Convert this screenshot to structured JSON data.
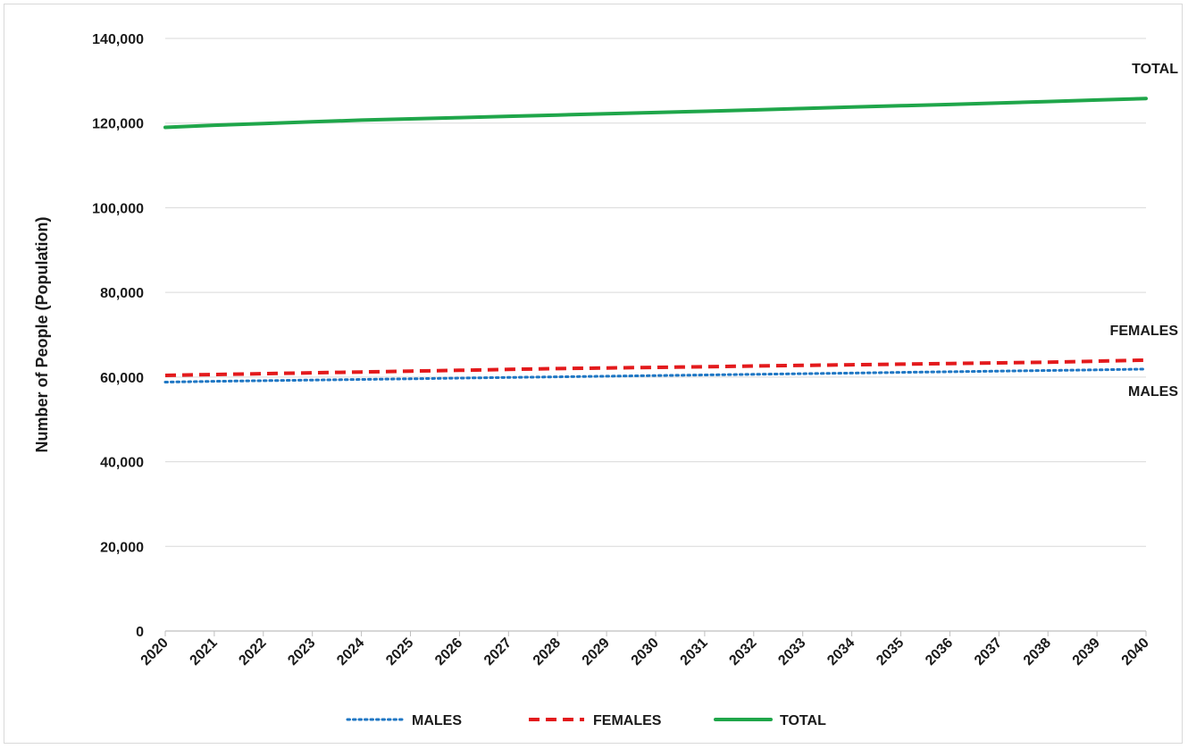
{
  "chart_data": {
    "type": "line",
    "title": "",
    "xlabel": "",
    "ylabel": "Number of People (Population)",
    "x": [
      2020,
      2021,
      2022,
      2023,
      2024,
      2025,
      2026,
      2027,
      2028,
      2029,
      2030,
      2031,
      2032,
      2033,
      2034,
      2035,
      2036,
      2037,
      2038,
      2039,
      2040
    ],
    "ylim": [
      0,
      140000
    ],
    "yticks": [
      0,
      20000,
      40000,
      60000,
      80000,
      100000,
      120000,
      140000
    ],
    "ytick_labels": [
      "0",
      "20,000",
      "40,000",
      "60,000",
      "80,000",
      "100,000",
      "120,000",
      "140,000"
    ],
    "grid": "horizontal",
    "legend_position": "bottom",
    "series": [
      {
        "name": "MALES",
        "color": "#1f77c4",
        "style": "dotted",
        "values": [
          58800,
          59000,
          59150,
          59300,
          59450,
          59600,
          59750,
          59900,
          60050,
          60200,
          60350,
          60500,
          60650,
          60800,
          60950,
          61100,
          61250,
          61400,
          61550,
          61700,
          61900
        ]
      },
      {
        "name": "FEMALES",
        "color": "#e31a1c",
        "style": "dashed",
        "values": [
          60400,
          60600,
          60800,
          61000,
          61200,
          61400,
          61600,
          61800,
          62000,
          62150,
          62300,
          62450,
          62600,
          62750,
          62900,
          63050,
          63200,
          63350,
          63500,
          63750,
          64000
        ]
      },
      {
        "name": "TOTAL",
        "color": "#1fa64a",
        "style": "solid",
        "values": [
          119000,
          119500,
          119900,
          120300,
          120700,
          121000,
          121300,
          121600,
          121900,
          122200,
          122500,
          122800,
          123100,
          123450,
          123800,
          124100,
          124400,
          124750,
          125100,
          125450,
          125800
        ]
      }
    ],
    "end_labels": [
      "TOTAL",
      "FEMALES",
      "MALES"
    ]
  }
}
